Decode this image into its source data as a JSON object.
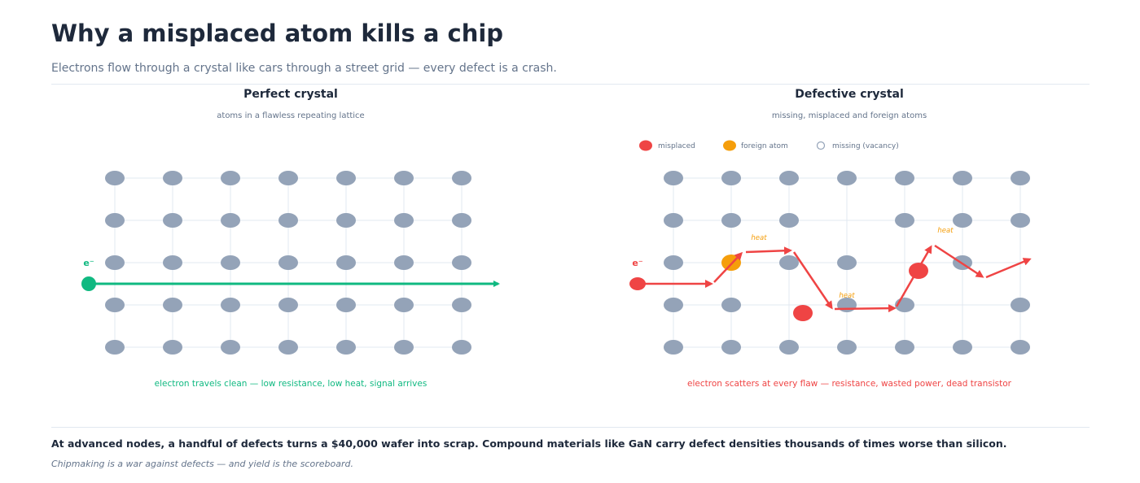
{
  "page": {
    "title": "Why a misplaced atom kills a chip",
    "subtitle": "Electrons flow through a crystal like cars through a street grid — every defect is a crash."
  },
  "perfect_panel": {
    "heading": "Perfect crystal",
    "caption": "atoms in a flawless repeating lattice",
    "electron_label": "e⁻",
    "result_text": "electron travels clean — low resistance, low heat, signal arrives"
  },
  "defective_panel": {
    "heading": "Defective crystal",
    "caption": "missing, misplaced and foreign atoms",
    "legend": {
      "misplaced": "misplaced",
      "foreign": "foreign atom",
      "missing": "missing (vacancy)"
    },
    "electron_label": "e⁻",
    "heat_label": "heat",
    "result_text": "electron scatters at every flaw — resistance, wasted power, dead transistor"
  },
  "footer": {
    "main": "At advanced nodes, a handful of defects turns a $40,000 wafer into scrap. Compound materials like GaN carry defect densities thousands of times worse than silicon.",
    "note": "Chipmaking is a war against defects — and yield is the scoreboard."
  },
  "colors": {
    "atom": "#94a3b8",
    "good_path": "#10b981",
    "bad_path": "#ef4444",
    "foreign": "#f59e0b",
    "heat_text": "#f59e0b",
    "lattice_line": "#e2e8f0",
    "title": "#1e293b",
    "muted": "#64748b"
  }
}
